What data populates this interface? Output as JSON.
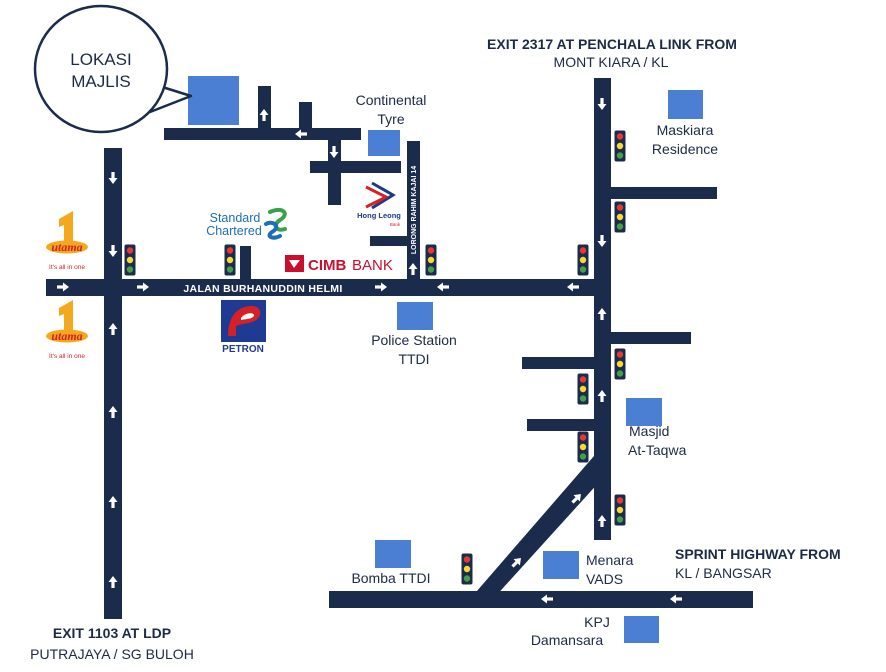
{
  "bubble": {
    "line1": "LOKASI",
    "line2": "MAJLIS"
  },
  "exits": {
    "top_line1": "EXIT 2317 AT PENCHALA LINK FROM",
    "top_line2": "MONT KIARA / KL",
    "bottom_line1": "EXIT 1103 AT LDP",
    "bottom_line2": "PUTRAJAYA / SG BULOH",
    "right_line1": "SPRINT HIGHWAY FROM",
    "right_line2": "KL / BANGSAR"
  },
  "roads": {
    "main": "JALAN BURHANUDDIN HELMI",
    "lorong": "LORONG RAHIM KAJAI 14"
  },
  "landmarks": {
    "continental_1": "Continental",
    "continental_2": "Tyre",
    "maskiara_1": "Maskiara",
    "maskiara_2": "Residence",
    "police_1": "Police Station",
    "police_2": "TTDI",
    "masjid_1": "Masjid",
    "masjid_2": "At-Taqwa",
    "bomba": "Bomba TTDI",
    "menara_1": "Menara",
    "menara_2": "VADS",
    "kpj_1": "KPJ",
    "kpj_2": "Damansara"
  },
  "logos": {
    "standard_1": "Standard",
    "standard_2": "Chartered",
    "hongleong_1": "Hong Leong",
    "hongleong_2": "Bank",
    "cimb_1": "CIMB",
    "cimb_2": "BANK",
    "petron": "PETRON",
    "utama_num": "1",
    "utama_name": "utama",
    "utama_tag": "It's all in one"
  },
  "colors": {
    "road": "#1b2b4b",
    "block": "#4a7fd4",
    "cimb": "#c8102e",
    "petron": "#1f3a93"
  }
}
